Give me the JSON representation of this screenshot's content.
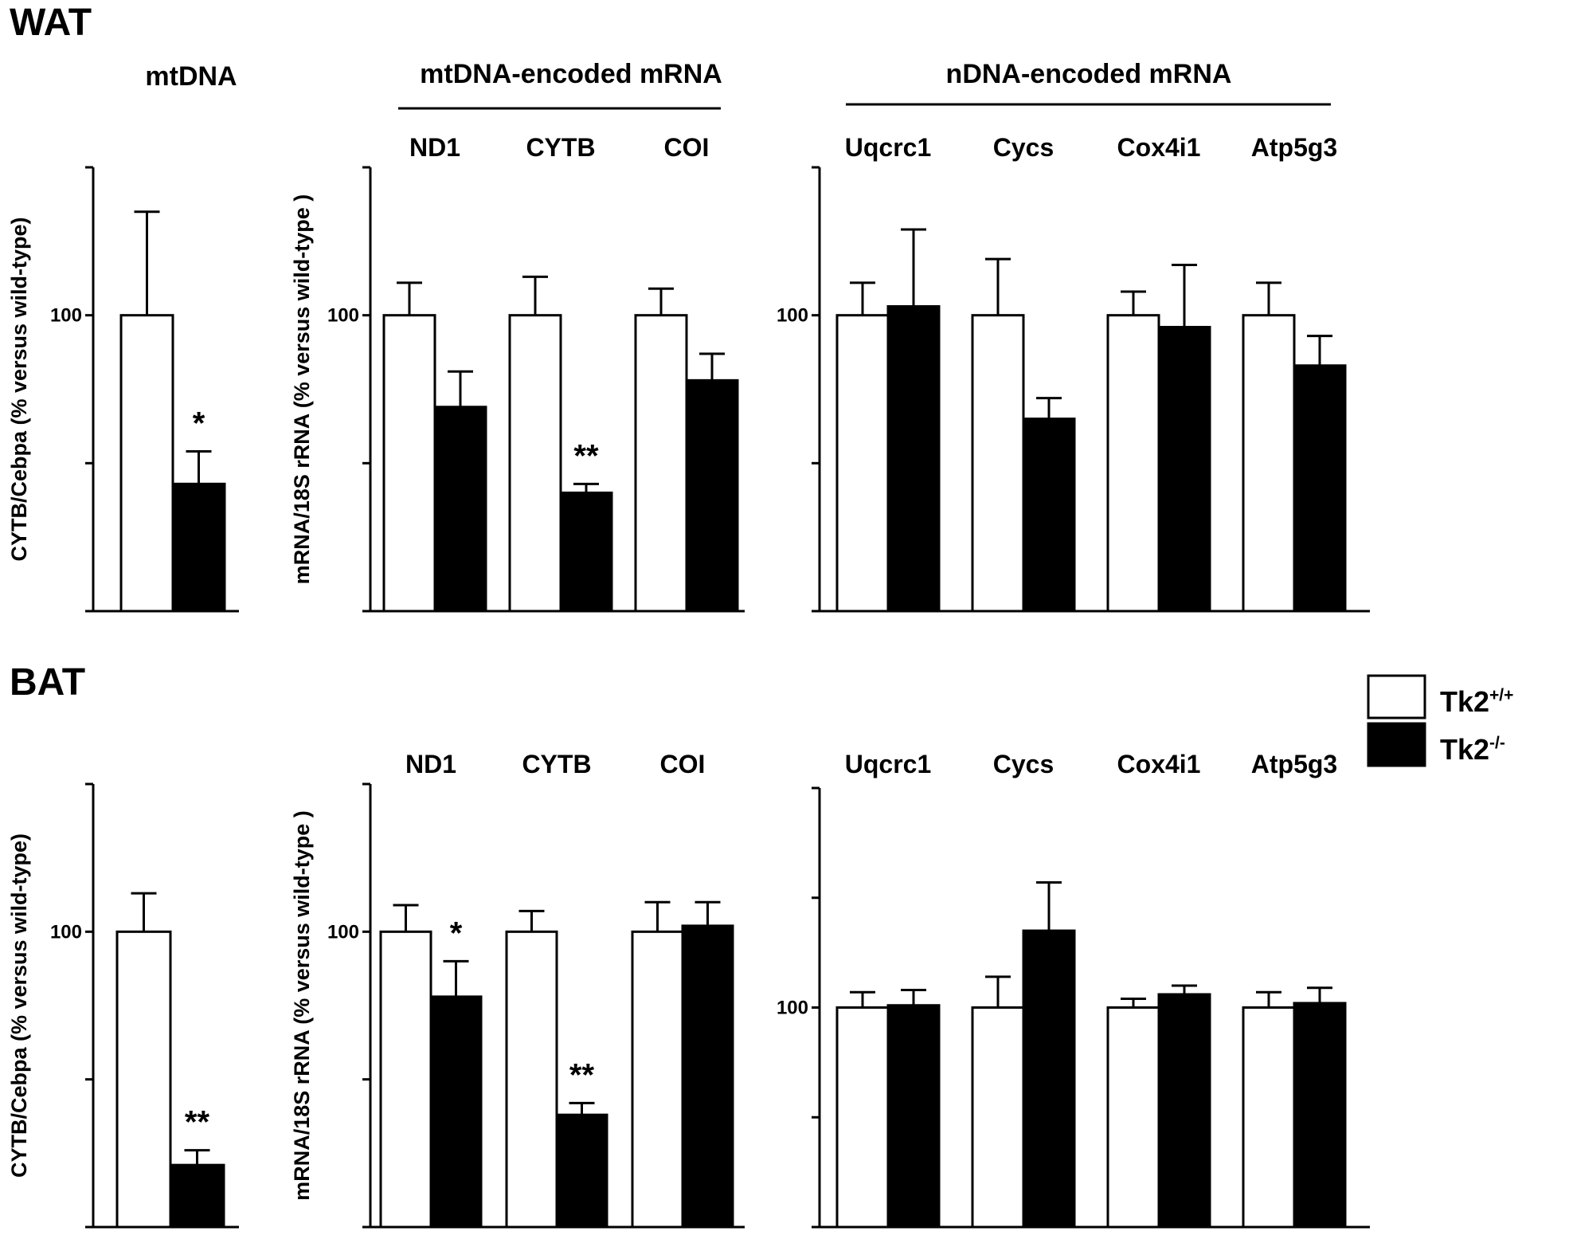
{
  "colors": {
    "wildtype": "#ffffff",
    "knockout": "#000000",
    "axis": "#000000"
  },
  "section_labels": {
    "wat": "WAT",
    "bat": "BAT"
  },
  "legend": {
    "wildtype": {
      "base": "Tk2",
      "sup": "+/+"
    },
    "knockout": {
      "base": "Tk2",
      "sup": "-/-"
    }
  },
  "chart_data": [
    {
      "type": "bar",
      "section": "WAT",
      "title": "mtDNA",
      "ylabel": "CYTB/Cebpa  (% versus wild-type)",
      "ylim": [
        0,
        150
      ],
      "yticks": [
        0,
        50,
        100,
        150
      ],
      "ytick_labels": [
        "",
        "",
        "100",
        ""
      ],
      "categories": [
        ""
      ],
      "series": [
        {
          "values": [
            100
          ],
          "errors": [
            35
          ]
        },
        {
          "values": [
            43
          ],
          "errors": [
            11
          ]
        }
      ],
      "significance": [
        "*"
      ]
    },
    {
      "type": "bar",
      "section": "WAT",
      "title": "mtDNA-encoded mRNA",
      "ylabel": "mRNA/18S rRNA (% versus wild-type )",
      "ylim": [
        0,
        150
      ],
      "yticks": [
        0,
        50,
        100,
        150
      ],
      "ytick_labels": [
        "",
        "",
        "100",
        ""
      ],
      "categories": [
        "ND1",
        "CYTB",
        "COI"
      ],
      "series": [
        {
          "values": [
            100,
            100,
            100
          ],
          "errors": [
            11,
            13,
            9
          ]
        },
        {
          "values": [
            69,
            40,
            78
          ],
          "errors": [
            12,
            3,
            9
          ]
        }
      ],
      "significance": [
        "",
        "**",
        ""
      ]
    },
    {
      "type": "bar",
      "section": "WAT",
      "title": "nDNA-encoded mRNA",
      "ylabel": "",
      "ylim": [
        0,
        150
      ],
      "yticks": [
        0,
        50,
        100,
        150
      ],
      "ytick_labels": [
        "",
        "",
        "100",
        ""
      ],
      "categories": [
        "Uqcrc1",
        "Cycs",
        "Cox4i1",
        "Atp5g3"
      ],
      "series": [
        {
          "values": [
            100,
            100,
            100,
            100
          ],
          "errors": [
            11,
            19,
            8,
            11
          ]
        },
        {
          "values": [
            103,
            65,
            96,
            83
          ],
          "errors": [
            26,
            7,
            21,
            10
          ]
        }
      ],
      "significance": [
        "",
        "",
        "",
        ""
      ]
    },
    {
      "type": "bar",
      "section": "BAT",
      "title": "",
      "ylabel": "CYTB/Cebpa (% versus wild-type)",
      "ylim": [
        0,
        150
      ],
      "yticks": [
        0,
        50,
        100,
        150
      ],
      "ytick_labels": [
        "",
        "",
        "100",
        ""
      ],
      "categories": [
        ""
      ],
      "series": [
        {
          "values": [
            100
          ],
          "errors": [
            13
          ]
        },
        {
          "values": [
            21
          ],
          "errors": [
            5
          ]
        }
      ],
      "significance": [
        "**"
      ]
    },
    {
      "type": "bar",
      "section": "BAT",
      "title": "",
      "ylabel": "mRNA/18S rRNA (% versus wild-type )",
      "ylim": [
        0,
        150
      ],
      "yticks": [
        0,
        50,
        100,
        150
      ],
      "ytick_labels": [
        "",
        "",
        "100",
        ""
      ],
      "categories": [
        "ND1",
        "CYTB",
        "COI"
      ],
      "series": [
        {
          "values": [
            100,
            100,
            100
          ],
          "errors": [
            9,
            7,
            10
          ]
        },
        {
          "values": [
            78,
            38,
            102
          ],
          "errors": [
            12,
            4,
            8
          ]
        }
      ],
      "significance": [
        "*",
        "**",
        ""
      ]
    },
    {
      "type": "bar",
      "section": "BAT",
      "title": "",
      "ylabel": "",
      "ylim": [
        0,
        200
      ],
      "yticks": [
        0,
        50,
        100,
        150,
        200
      ],
      "ytick_labels": [
        "",
        "",
        "100",
        "",
        ""
      ],
      "categories": [
        "Uqcrc1",
        "Cycs",
        "Cox4i1",
        "Atp5g3"
      ],
      "series": [
        {
          "values": [
            100,
            100,
            100,
            100
          ],
          "errors": [
            7,
            14,
            4,
            7
          ]
        },
        {
          "values": [
            101,
            135,
            106,
            102
          ],
          "errors": [
            7,
            22,
            4,
            7
          ]
        }
      ],
      "significance": [
        "",
        "",
        "",
        ""
      ]
    }
  ]
}
